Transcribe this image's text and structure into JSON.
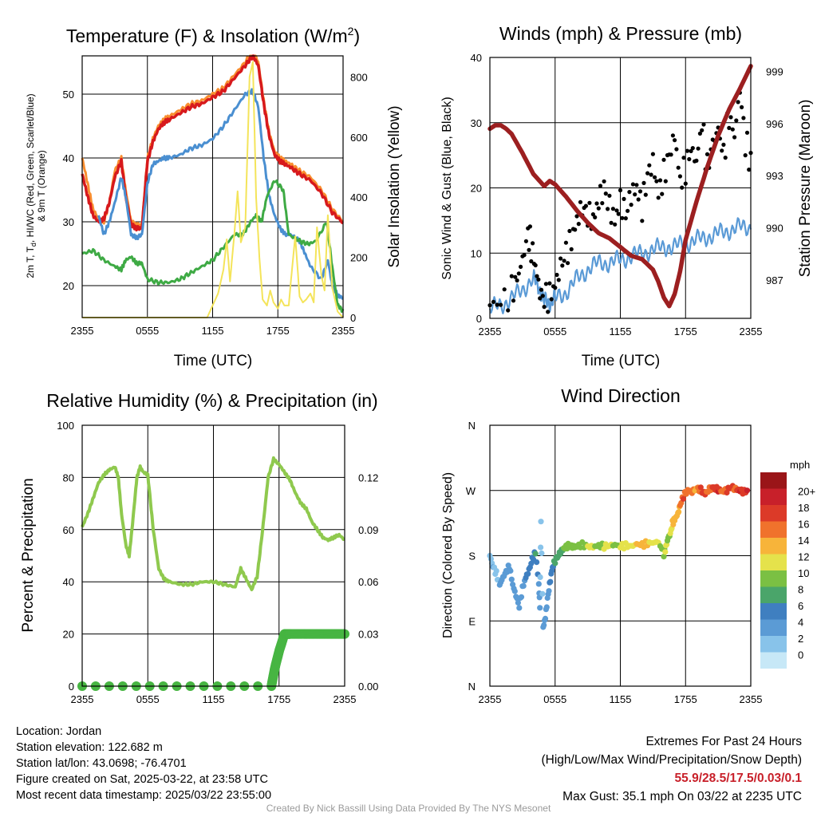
{
  "colors": {
    "temp": "#d7191c",
    "nine_m": "#f98e2f",
    "dewpoint": "#3eaa44",
    "heat_index": "#4a8fd1",
    "insolation": "#f4e45a",
    "wind": "#5a9ad6",
    "gust": "#000000",
    "pressure": "#9c1f20",
    "rh": "#8fc94e",
    "precip": "#47b542"
  },
  "x_ticks": [
    "2355",
    "0555",
    "1155",
    "1755",
    "2355"
  ],
  "chart_data": [
    {
      "id": "temp",
      "type": "line",
      "title_main": "Temperature (F) & Insolation (W/m",
      "title_sup": "2",
      "title_close": ")",
      "xlabel": "Time (UTC)",
      "ylabel_line1": "2m T, T",
      "ylabel_sub": "d",
      "ylabel_rest": ", HI/WC (Red, Green, Scarlet/Blue)",
      "ylabel_line2": "& 9m T (Orange)",
      "y2label": "Solar Insolation (Yellow)",
      "x": [
        0,
        24
      ],
      "ylim": [
        15,
        56
      ],
      "yticks": [
        20,
        30,
        40,
        50
      ],
      "y2lim": [
        0,
        870
      ],
      "y2ticks": [
        0,
        200,
        400,
        600,
        800
      ],
      "series": [
        {
          "key": "nine_m",
          "axis": "left",
          "width": 3,
          "x": [
            0,
            0.5,
            1,
            1.5,
            2,
            2.5,
            3,
            3.6,
            4,
            4.5,
            5,
            5.5,
            6,
            6.5,
            7,
            7.5,
            8,
            9,
            10,
            11,
            12,
            13,
            14,
            15,
            15.7,
            16.2,
            16.7,
            17.2,
            17.7,
            18.2,
            18.7,
            19.2,
            20,
            21,
            22,
            23,
            24
          ],
          "y": [
            40,
            36,
            32,
            30.5,
            30,
            33,
            38,
            40,
            35,
            30,
            29.5,
            29.5,
            40,
            43,
            45,
            46,
            46.5,
            47.5,
            48.5,
            49,
            50,
            51,
            53,
            55,
            57,
            55,
            49,
            44,
            41,
            40,
            39.5,
            39,
            38,
            37,
            35,
            32,
            30
          ]
        },
        {
          "key": "temp",
          "axis": "left",
          "width": 3.5,
          "x": [
            0,
            0.5,
            1,
            1.5,
            2,
            2.5,
            3,
            3.6,
            4,
            4.5,
            5,
            5.5,
            6,
            6.5,
            7,
            7.5,
            8,
            9,
            10,
            11,
            12,
            13,
            14,
            15,
            15.7,
            16.2,
            16.7,
            17.2,
            17.7,
            18.2,
            18.7,
            19.2,
            20,
            21,
            22,
            23,
            24
          ],
          "y": [
            37.5,
            34,
            31,
            30,
            30.5,
            33,
            37,
            39.5,
            34,
            29.5,
            29,
            29,
            39.5,
            42.5,
            44.5,
            45.5,
            46,
            47,
            48,
            48.5,
            49.5,
            50.5,
            52.5,
            54.5,
            56,
            54.5,
            48.5,
            43.5,
            40.5,
            39.5,
            39,
            38.5,
            37.5,
            36.5,
            34.5,
            31.5,
            29.8
          ]
        },
        {
          "key": "heat_index",
          "axis": "left",
          "width": 3,
          "x": [
            1.5,
            2,
            2.5,
            3,
            3.6,
            4,
            4.5,
            5,
            5.5,
            6,
            6.5,
            7,
            7.5,
            8,
            9,
            10,
            11,
            12,
            13,
            14,
            15,
            15.7,
            16.2,
            16.7,
            17.2,
            17.7,
            18.2,
            18.7,
            19.2,
            20,
            20.5,
            21,
            22,
            22.6,
            23,
            23.5,
            24
          ],
          "y": [
            31,
            28,
            30,
            33,
            37,
            34,
            28,
            27.5,
            28,
            36,
            39,
            39.5,
            40,
            40,
            40.5,
            41.5,
            42,
            43,
            45,
            47.5,
            50,
            50.5,
            48,
            40,
            34,
            31,
            29,
            28,
            28,
            27,
            25,
            23,
            21,
            24,
            20,
            18.5,
            18
          ]
        },
        {
          "key": "dewpoint",
          "axis": "left",
          "width": 3,
          "x": [
            0,
            1,
            2,
            3,
            3.6,
            4,
            4.5,
            5,
            5.5,
            6,
            7,
            8,
            9,
            10,
            11,
            12,
            13,
            14,
            14.8,
            15.5,
            16,
            16.5,
            17,
            17.7,
            18.5,
            19,
            20,
            20.8,
            21.5,
            22.5,
            23,
            23.5,
            24
          ],
          "y": [
            25,
            25.5,
            24,
            23,
            22.5,
            24,
            24.5,
            23.5,
            23.5,
            21,
            20.5,
            20.5,
            21,
            22,
            23,
            24,
            26,
            28,
            28,
            30,
            31,
            30,
            34,
            36.5,
            35,
            28,
            27,
            26.5,
            27,
            30,
            23,
            17,
            16
          ]
        },
        {
          "key": "insolation",
          "axis": "right",
          "width": 2,
          "x": [
            0,
            11.5,
            12,
            12.5,
            13,
            13.3,
            13.6,
            14,
            14.3,
            14.6,
            15,
            15.4,
            15.7,
            16,
            16.3,
            16.6,
            17,
            17.3,
            17.6,
            18,
            18.3,
            18.6,
            19,
            19.3,
            19.6,
            20,
            20.3,
            20.6,
            21,
            21.3,
            21.6,
            22,
            22.3,
            22.6,
            23,
            23.5,
            24
          ],
          "y": [
            0,
            0,
            40,
            80,
            160,
            260,
            120,
            280,
            420,
            250,
            300,
            800,
            850,
            400,
            200,
            60,
            40,
            90,
            50,
            30,
            60,
            40,
            40,
            160,
            270,
            70,
            50,
            60,
            80,
            50,
            300,
            140,
            90,
            340,
            100,
            20,
            0
          ]
        }
      ]
    },
    {
      "id": "wind",
      "type": "scatter",
      "title": "Winds (mph) & Pressure (mb)",
      "xlabel": "Time (UTC)",
      "ylabel": "Sonic Wind & Gust (Blue, Black)",
      "y2label": "Station Pressure (Maroon)",
      "x": [
        0,
        24
      ],
      "ylim": [
        0,
        40
      ],
      "yticks": [
        0,
        10,
        20,
        30,
        40
      ],
      "y2lim": [
        984.8,
        999.8
      ],
      "y2ticks": [
        987,
        990,
        993,
        996,
        999
      ],
      "series": [
        {
          "key": "wind",
          "name": "Sonic Wind",
          "style": "line",
          "x": [
            0,
            1,
            2,
            3,
            4,
            4.5,
            5,
            5.5,
            6,
            7,
            8,
            9,
            10,
            11,
            12,
            13,
            14,
            15,
            16,
            17,
            18,
            19,
            20,
            21,
            22,
            23,
            24
          ],
          "y": [
            1.5,
            2,
            3,
            4.5,
            6,
            5,
            2.5,
            2.5,
            3,
            4,
            6,
            7.5,
            8.5,
            8.5,
            9,
            9.5,
            10,
            10.5,
            11,
            11,
            11.5,
            12,
            12.5,
            13,
            13.5,
            14,
            14
          ]
        },
        {
          "key": "gust",
          "name": "Gust",
          "style": "dots",
          "x": [
            0,
            1,
            2,
            2.5,
            3,
            3.5,
            3.8,
            4.2,
            4.6,
            5,
            5.5,
            6,
            6.5,
            7,
            7.5,
            8,
            8.5,
            9,
            9.5,
            10,
            10.5,
            11,
            11.5,
            12,
            12.5,
            13,
            13.5,
            14,
            14.5,
            15,
            15.5,
            16,
            16.5,
            17,
            17.5,
            18,
            18.5,
            19,
            19.5,
            20,
            20.5,
            21,
            21.5,
            22,
            22.5,
            23,
            23.5,
            24
          ],
          "y": [
            2,
            2.5,
            4,
            6,
            9,
            13,
            11,
            8,
            4,
            3,
            3.5,
            5,
            8,
            10,
            12,
            15,
            17,
            16,
            15,
            18,
            20,
            17,
            15,
            18,
            16,
            19,
            20,
            17,
            22,
            24,
            19,
            22,
            25,
            28,
            21,
            23,
            26,
            24,
            30,
            23,
            27,
            29,
            25,
            31,
            28,
            35.1,
            27,
            24
          ]
        },
        {
          "key": "pressure",
          "name": "Station Pressure",
          "style": "line",
          "axis": "right",
          "x": [
            0,
            0.5,
            1,
            1.5,
            2,
            3,
            4,
            5,
            5.5,
            6,
            7,
            8,
            9,
            10,
            11,
            12,
            13,
            14,
            15,
            15.5,
            16,
            16.5,
            17,
            17.5,
            18,
            19,
            20,
            21,
            22,
            23,
            24
          ],
          "y": [
            995.7,
            995.9,
            995.9,
            995.7,
            995.4,
            994.3,
            993.1,
            992.4,
            992.7,
            992.5,
            991.8,
            991.0,
            990.3,
            989.7,
            989.4,
            988.9,
            988.4,
            988.2,
            987.6,
            986.9,
            986.0,
            985.5,
            986.2,
            987.5,
            989.3,
            991.5,
            993.5,
            995.3,
            996.8,
            998.0,
            999.3
          ]
        }
      ]
    },
    {
      "id": "rh",
      "type": "line",
      "title": "Relative Humidity (%) & Precipitation (in)",
      "ylabel": "Percent & Precipitation",
      "x": [
        0,
        24
      ],
      "ylim": [
        0,
        100
      ],
      "yticks": [
        0,
        20,
        40,
        60,
        80,
        100
      ],
      "y2lim": [
        0,
        0.15
      ],
      "y2ticks": [
        "0.00",
        "0.03",
        "0.06",
        "0.09",
        "0.12"
      ],
      "series": [
        {
          "key": "rh",
          "name": "Relative Humidity",
          "axis": "left",
          "x": [
            0,
            0.5,
            1,
            1.5,
            2,
            2.5,
            3,
            3.3,
            3.6,
            4,
            4.3,
            4.6,
            5,
            5.3,
            5.6,
            6,
            6.5,
            7,
            7.5,
            8,
            9,
            10,
            11,
            12,
            13,
            14,
            14.5,
            15,
            15.5,
            16,
            16.5,
            17,
            17.5,
            18,
            18.5,
            19,
            19.5,
            20,
            20.5,
            21,
            21.5,
            22,
            22.5,
            23,
            23.5,
            24
          ],
          "y": [
            61,
            66,
            72,
            78,
            81,
            83,
            84,
            80,
            66,
            54,
            50,
            62,
            80,
            84,
            82,
            81,
            60,
            45,
            41,
            40,
            39,
            39,
            40,
            40,
            39,
            38,
            45,
            41,
            37,
            42,
            60,
            80,
            87,
            85,
            82,
            79,
            74,
            70,
            68,
            63,
            60,
            57,
            56,
            57,
            58,
            56
          ]
        },
        {
          "key": "precip",
          "name": "Precipitation",
          "axis": "right",
          "x": [
            0,
            17.3,
            17.6,
            18,
            18.5,
            18.8,
            19,
            20,
            21,
            22,
            23,
            24
          ],
          "y": [
            0,
            0,
            0.01,
            0.02,
            0.03,
            0.03,
            0.03,
            0.03,
            0.03,
            0.03,
            0.03,
            0.03
          ]
        }
      ]
    },
    {
      "id": "dir",
      "type": "scatter",
      "title": "Wind Direction",
      "ylabel": "Direction (Colored By Speed)",
      "x": [
        0,
        24
      ],
      "ylim": [
        0,
        360
      ],
      "yticks": [
        "N",
        "E",
        "S",
        "W",
        "N"
      ],
      "colorbar_title": "mph",
      "colorbar_labels": [
        "0",
        "2",
        "4",
        "6",
        "8",
        "10",
        "12",
        "14",
        "16",
        "18",
        "20+"
      ],
      "colorbar_colors": [
        "#c7e8f7",
        "#88c3ea",
        "#5b9bd5",
        "#3f7fc0",
        "#4aa56a",
        "#7bc043",
        "#e5e24b",
        "#f7b43a",
        "#f0722c",
        "#dc3a28",
        "#c8202a",
        "#9a1518"
      ],
      "points": {
        "t": [
          0,
          0.3,
          0.6,
          0.9,
          1.2,
          1.5,
          1.8,
          2.1,
          2.4,
          2.7,
          3.0,
          3.3,
          3.6,
          3.9,
          4.2,
          4.5,
          4.6,
          4.7,
          4.9,
          5.1,
          5.3,
          5.5,
          5.7,
          5.9,
          6.2,
          6.5,
          6.8,
          7.1,
          7.4,
          7.7,
          8.0,
          8.5,
          9,
          9.5,
          10,
          10.5,
          11,
          11.5,
          12,
          12.5,
          13,
          13.5,
          14,
          14.5,
          15,
          15.5,
          16,
          16.2,
          16.4,
          16.6,
          16.8,
          17,
          17.3,
          17.5,
          17.8,
          18.2,
          18.6,
          19,
          19.4,
          19.8,
          20.2,
          20.6,
          21,
          21.4,
          21.8,
          22.2,
          22.6,
          23,
          23.4,
          23.8
        ],
        "deg": [
          180,
          165,
          155,
          140,
          150,
          158,
          165,
          140,
          125,
          110,
          135,
          150,
          160,
          175,
          185,
          140,
          110,
          230,
          80,
          95,
          120,
          140,
          160,
          170,
          178,
          185,
          190,
          193,
          194,
          192,
          193,
          195,
          193,
          192,
          194,
          193,
          194,
          195,
          193,
          194,
          193,
          196,
          195,
          197,
          198,
          199,
          182,
          192,
          205,
          210,
          225,
          230,
          238,
          250,
          262,
          270,
          268,
          273,
          271,
          265,
          272,
          274,
          271,
          269,
          270,
          275,
          272,
          270,
          268,
          271
        ],
        "spd": [
          1,
          2,
          1,
          2,
          2,
          3,
          2,
          3,
          3,
          2,
          3,
          4,
          5,
          5,
          6,
          3,
          2,
          1,
          2,
          3,
          3,
          4,
          5,
          6,
          7,
          7,
          8,
          8,
          9,
          9,
          8,
          9,
          10,
          10,
          9,
          10,
          11,
          9,
          10,
          11,
          10,
          12,
          13,
          12,
          11,
          10,
          8,
          11,
          9,
          10,
          12,
          13,
          12,
          14,
          16,
          14,
          15,
          13,
          17,
          16,
          15,
          17,
          18,
          14,
          16,
          17,
          15,
          18,
          16,
          19
        ]
      }
    }
  ],
  "meta": {
    "location": "Location: Jordan",
    "elevation": "Station elevation: 122.682 m",
    "latlon": "Station lat/lon: 43.0698; -76.4701",
    "created": "Figure created on Sat, 2025-03-22, at 23:58 UTC",
    "recent": "Most recent data timestamp: 2025/03/22 23:55:00"
  },
  "extremes": {
    "title": "Extremes For Past 24 Hours",
    "subtitle": "(High/Low/Max Wind/Precipitation/Snow Depth)",
    "values": "55.9/28.5/17.5/0.03/0.1",
    "gust": "Max Gust: 35.1 mph On 03/22 at 2235 UTC"
  },
  "credit": "Created By Nick Bassill Using Data Provided By The NYS Mesonet"
}
